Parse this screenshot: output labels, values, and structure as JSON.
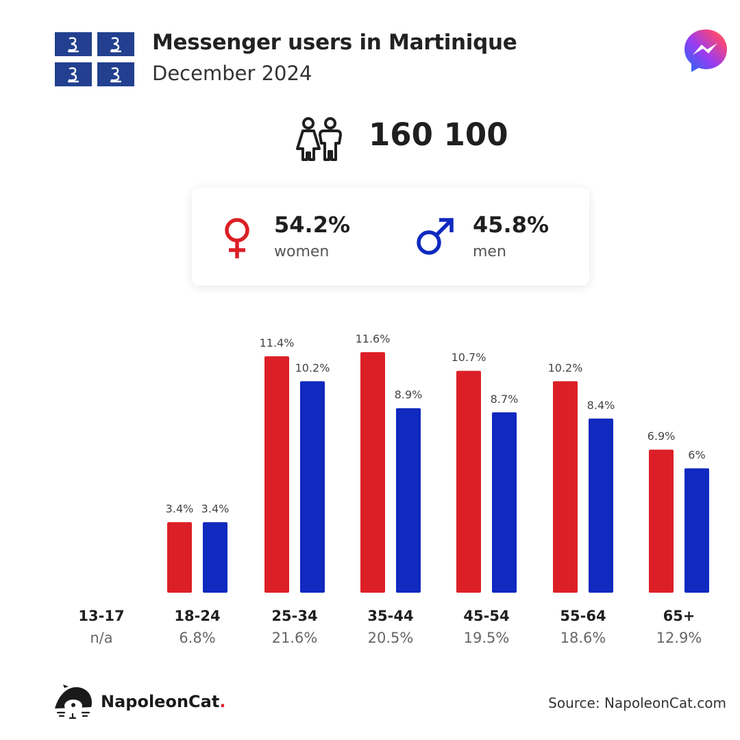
{
  "header": {
    "title": "Messenger users in Martinique",
    "subtitle": "December 2024",
    "flag_icon": "martinique-flag-icon",
    "app_icon": "messenger-icon"
  },
  "total": {
    "icon": "people-icon",
    "value": "160 100"
  },
  "gender": {
    "women": {
      "icon": "female-symbol-icon",
      "pct": "54.2%",
      "label": "women",
      "color": "#dc1f26"
    },
    "men": {
      "icon": "male-symbol-icon",
      "pct": "45.8%",
      "label": "men",
      "color": "#1029bf"
    }
  },
  "chart_data": {
    "type": "bar",
    "categories": [
      "13-17",
      "18-24",
      "25-34",
      "35-44",
      "45-54",
      "55-64",
      "65+"
    ],
    "category_totals": [
      "n/a",
      "6.8%",
      "21.6%",
      "20.5%",
      "19.5%",
      "18.6%",
      "12.9%"
    ],
    "series": [
      {
        "name": "women",
        "color": "#dc1f26",
        "values": [
          null,
          3.4,
          11.4,
          11.6,
          10.7,
          10.2,
          6.9
        ],
        "labels": [
          "",
          "3.4%",
          "11.4%",
          "11.6%",
          "10.7%",
          "10.2%",
          "6.9%"
        ]
      },
      {
        "name": "men",
        "color": "#1029bf",
        "values": [
          null,
          3.4,
          10.2,
          8.9,
          8.7,
          8.4,
          6.0
        ],
        "labels": [
          "",
          "3.4%",
          "10.2%",
          "8.9%",
          "8.7%",
          "8.4%",
          "6%"
        ]
      }
    ],
    "title": "",
    "xlabel": "",
    "ylabel": "",
    "ylim": [
      0,
      11.6
    ],
    "grid": false,
    "legend": "none"
  },
  "footer": {
    "brand_prefix": "NapoleonCat",
    "brand_dot": ".",
    "logo_icon": "napoleoncat-logo-icon",
    "source": "Source: NapoleonCat.com"
  }
}
